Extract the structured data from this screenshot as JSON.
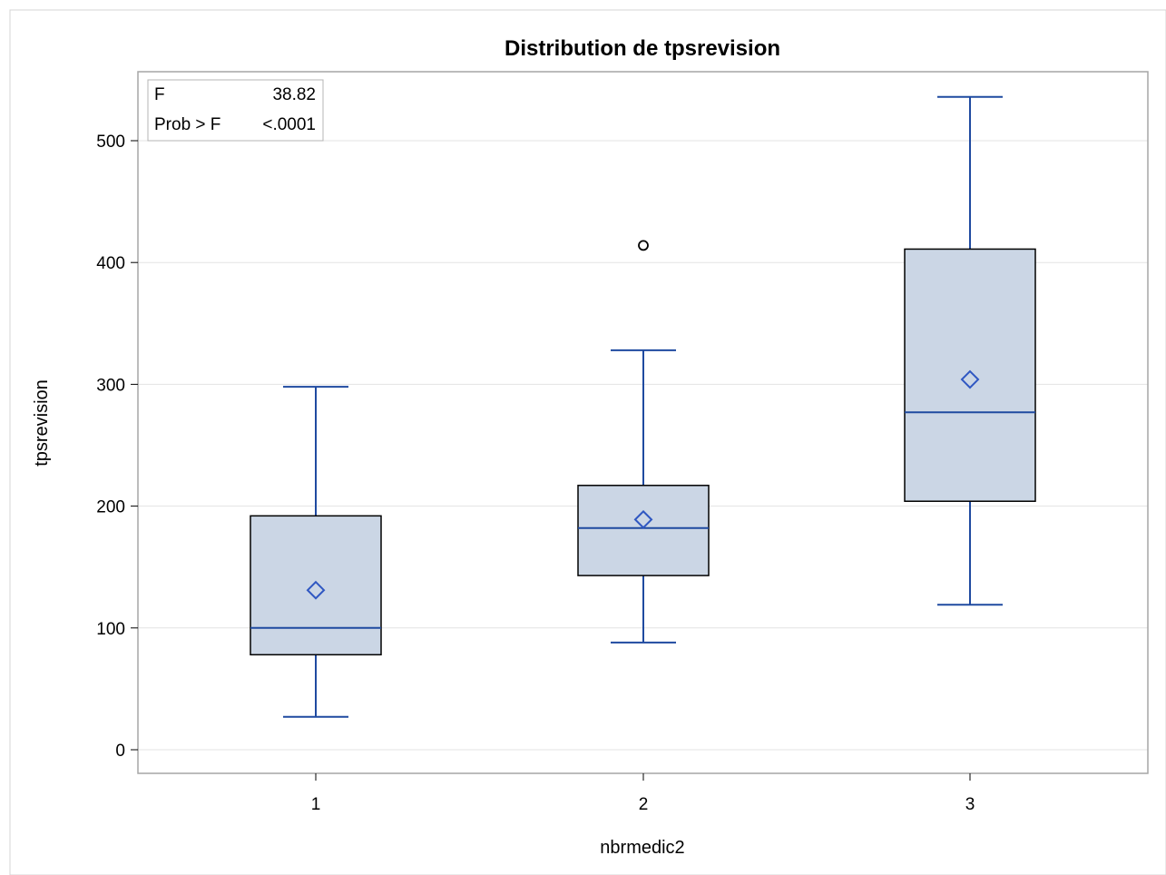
{
  "chart_data": {
    "type": "box",
    "title": "Distribution de tpsrevision",
    "xlabel": "nbrmedic2",
    "ylabel": "tpsrevision",
    "categories": [
      "1",
      "2",
      "3"
    ],
    "ylim": [
      -20,
      550
    ],
    "yticks": [
      0,
      100,
      200,
      300,
      400,
      500
    ],
    "grid": true,
    "colors": {
      "box_fill": "#cbd6e5",
      "box_outline": "#000000",
      "whisker": "#1f4aa0",
      "median": "#1f4aa0",
      "mean_marker": "#2f57c2",
      "outlier": "#000000",
      "grid": "#e3e3e3",
      "frame": "#a6a6a6"
    },
    "boxes": [
      {
        "category": "1",
        "min": 27,
        "q1": 78,
        "median": 100,
        "q3": 192,
        "max": 298,
        "mean": 131,
        "outliers": []
      },
      {
        "category": "2",
        "min": 88,
        "q1": 143,
        "median": 182,
        "q3": 217,
        "max": 328,
        "mean": 189,
        "outliers": [
          414
        ]
      },
      {
        "category": "3",
        "min": 119,
        "q1": 204,
        "median": 277,
        "q3": 411,
        "max": 536,
        "mean": 304,
        "outliers": []
      }
    ],
    "inset": {
      "placement": "top-left",
      "rows": [
        {
          "label": "F",
          "value": "38.82"
        },
        {
          "label": "Prob > F",
          "value": "<.0001"
        }
      ]
    }
  }
}
